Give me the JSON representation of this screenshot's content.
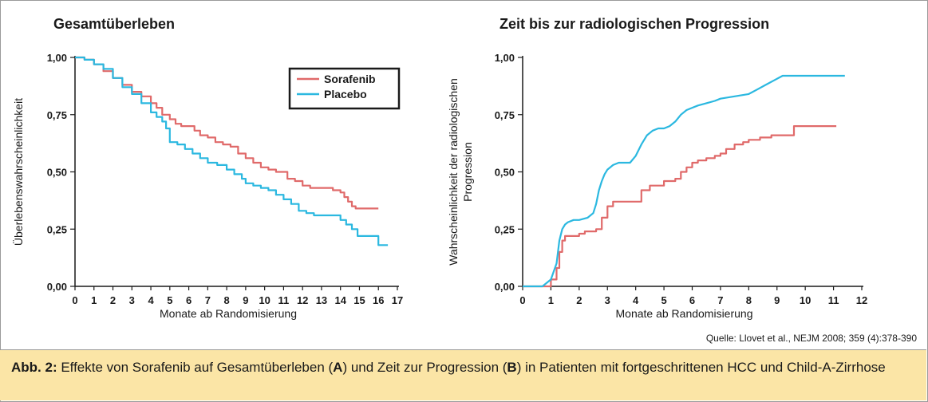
{
  "source": "Quelle: Llovet et al., NEJM 2008; 359 (4):378-390",
  "caption": {
    "label": "Abb. 2:",
    "text_1": " Effekte von Sorafenib auf Gesamtüberleben (",
    "bold_a": "A",
    "text_2": ") und Zeit zur Progression (",
    "bold_b": "B",
    "text_3": ") in Patienten mit fortgeschrittenen HCC und Child-A-Zirrhose"
  },
  "chart_data": [
    {
      "type": "line",
      "title": "Gesamtüberleben",
      "xlabel": "Monate ab Randomisierung",
      "ylabel": "Überlebenswahrscheinlichkeit",
      "xlim": [
        0,
        17
      ],
      "ylim": [
        0,
        1
      ],
      "xticks": [
        "0",
        "1",
        "2",
        "3",
        "4",
        "5",
        "6",
        "7",
        "8",
        "9",
        "10",
        "11",
        "12",
        "13",
        "14",
        "15",
        "16",
        "17"
      ],
      "yticks": [
        "0,00",
        "0,25",
        "0,50",
        "0,75",
        "1,00"
      ],
      "grid": false,
      "legend_position": "top-right",
      "series": [
        {
          "name": "Sorafenib",
          "color": "#e06a6a",
          "step": true,
          "x": [
            0,
            0.5,
            1.0,
            1.5,
            2.0,
            2.5,
            3.0,
            3.5,
            4.0,
            4.3,
            4.6,
            5.0,
            5.3,
            5.6,
            6.0,
            6.3,
            6.6,
            7.0,
            7.4,
            7.8,
            8.2,
            8.6,
            9.0,
            9.4,
            9.8,
            10.2,
            10.6,
            11.0,
            11.2,
            11.6,
            12.0,
            12.4,
            13.0,
            13.6,
            14.0,
            14.2,
            14.4,
            14.6,
            14.8,
            15.2,
            15.6,
            16.0
          ],
          "y": [
            1.0,
            0.99,
            0.97,
            0.94,
            0.91,
            0.88,
            0.85,
            0.83,
            0.8,
            0.78,
            0.75,
            0.73,
            0.71,
            0.7,
            0.7,
            0.68,
            0.66,
            0.65,
            0.63,
            0.62,
            0.61,
            0.58,
            0.56,
            0.54,
            0.52,
            0.51,
            0.5,
            0.5,
            0.47,
            0.46,
            0.44,
            0.43,
            0.43,
            0.42,
            0.41,
            0.39,
            0.37,
            0.35,
            0.34,
            0.34,
            0.34,
            0.34
          ]
        },
        {
          "name": "Placebo",
          "color": "#2bb8e0",
          "step": true,
          "x": [
            0,
            0.5,
            1.0,
            1.5,
            2.0,
            2.5,
            3.0,
            3.5,
            4.0,
            4.3,
            4.6,
            4.8,
            5.0,
            5.4,
            5.8,
            6.2,
            6.6,
            7.0,
            7.5,
            8.0,
            8.4,
            8.8,
            9.0,
            9.4,
            9.8,
            10.2,
            10.6,
            11.0,
            11.4,
            11.8,
            12.2,
            12.6,
            13.0,
            13.6,
            14.0,
            14.3,
            14.6,
            14.9,
            15.2,
            15.6,
            16.0,
            16.5
          ],
          "y": [
            1.0,
            0.99,
            0.97,
            0.95,
            0.91,
            0.87,
            0.84,
            0.8,
            0.76,
            0.74,
            0.72,
            0.69,
            0.63,
            0.62,
            0.6,
            0.58,
            0.56,
            0.54,
            0.53,
            0.51,
            0.49,
            0.47,
            0.45,
            0.44,
            0.43,
            0.42,
            0.4,
            0.38,
            0.36,
            0.33,
            0.32,
            0.31,
            0.31,
            0.31,
            0.29,
            0.27,
            0.25,
            0.22,
            0.22,
            0.22,
            0.18,
            0.18
          ]
        }
      ]
    },
    {
      "type": "line",
      "title": "Zeit bis zur radiologischen Progression",
      "xlabel": "Monate ab Randomisierung",
      "ylabel_lines": [
        "Wahrscheinlichkeit der radiologischen",
        "Progression"
      ],
      "xlim": [
        0,
        12
      ],
      "ylim": [
        0,
        1
      ],
      "xticks": [
        "0",
        "1",
        "2",
        "3",
        "4",
        "5",
        "6",
        "7",
        "8",
        "9",
        "10",
        "11",
        "12"
      ],
      "yticks": [
        "0,00",
        "0,25",
        "0,50",
        "0,75",
        "1,00"
      ],
      "grid": false,
      "series": [
        {
          "name": "Sorafenib",
          "color": "#e06a6a",
          "step": true,
          "x": [
            0,
            0.7,
            1.0,
            1.2,
            1.3,
            1.4,
            1.5,
            1.6,
            1.8,
            2.0,
            2.2,
            2.4,
            2.6,
            2.8,
            3.0,
            3.2,
            3.5,
            3.8,
            4.0,
            4.2,
            4.5,
            5.0,
            5.4,
            5.6,
            5.8,
            6.0,
            6.2,
            6.5,
            6.8,
            7.0,
            7.2,
            7.5,
            7.8,
            8.0,
            8.4,
            8.8,
            9.2,
            9.6,
            10.0,
            11.1
          ],
          "y": [
            0,
            0,
            0.03,
            0.08,
            0.15,
            0.2,
            0.22,
            0.22,
            0.22,
            0.23,
            0.24,
            0.24,
            0.25,
            0.3,
            0.35,
            0.37,
            0.37,
            0.37,
            0.37,
            0.42,
            0.44,
            0.46,
            0.47,
            0.5,
            0.52,
            0.54,
            0.55,
            0.56,
            0.57,
            0.58,
            0.6,
            0.62,
            0.63,
            0.64,
            0.65,
            0.66,
            0.66,
            0.7,
            0.7,
            0.7
          ]
        },
        {
          "name": "Placebo",
          "color": "#2bb8e0",
          "step": false,
          "x": [
            0,
            0.7,
            1.0,
            1.2,
            1.3,
            1.4,
            1.5,
            1.6,
            1.8,
            2.0,
            2.3,
            2.5,
            2.6,
            2.7,
            2.8,
            2.9,
            3.0,
            3.2,
            3.4,
            3.6,
            3.8,
            4.0,
            4.2,
            4.4,
            4.6,
            4.8,
            5.0,
            5.2,
            5.4,
            5.6,
            5.8,
            6.0,
            6.2,
            6.5,
            6.8,
            7.0,
            7.5,
            8.0,
            8.3,
            8.6,
            8.9,
            9.2,
            9.6,
            10.0,
            11.4
          ],
          "y": [
            0,
            0,
            0.03,
            0.1,
            0.2,
            0.25,
            0.27,
            0.28,
            0.29,
            0.29,
            0.3,
            0.32,
            0.36,
            0.42,
            0.46,
            0.49,
            0.51,
            0.53,
            0.54,
            0.54,
            0.54,
            0.57,
            0.62,
            0.66,
            0.68,
            0.69,
            0.69,
            0.7,
            0.72,
            0.75,
            0.77,
            0.78,
            0.79,
            0.8,
            0.81,
            0.82,
            0.83,
            0.84,
            0.86,
            0.88,
            0.9,
            0.92,
            0.92,
            0.92,
            0.92
          ]
        }
      ]
    }
  ]
}
